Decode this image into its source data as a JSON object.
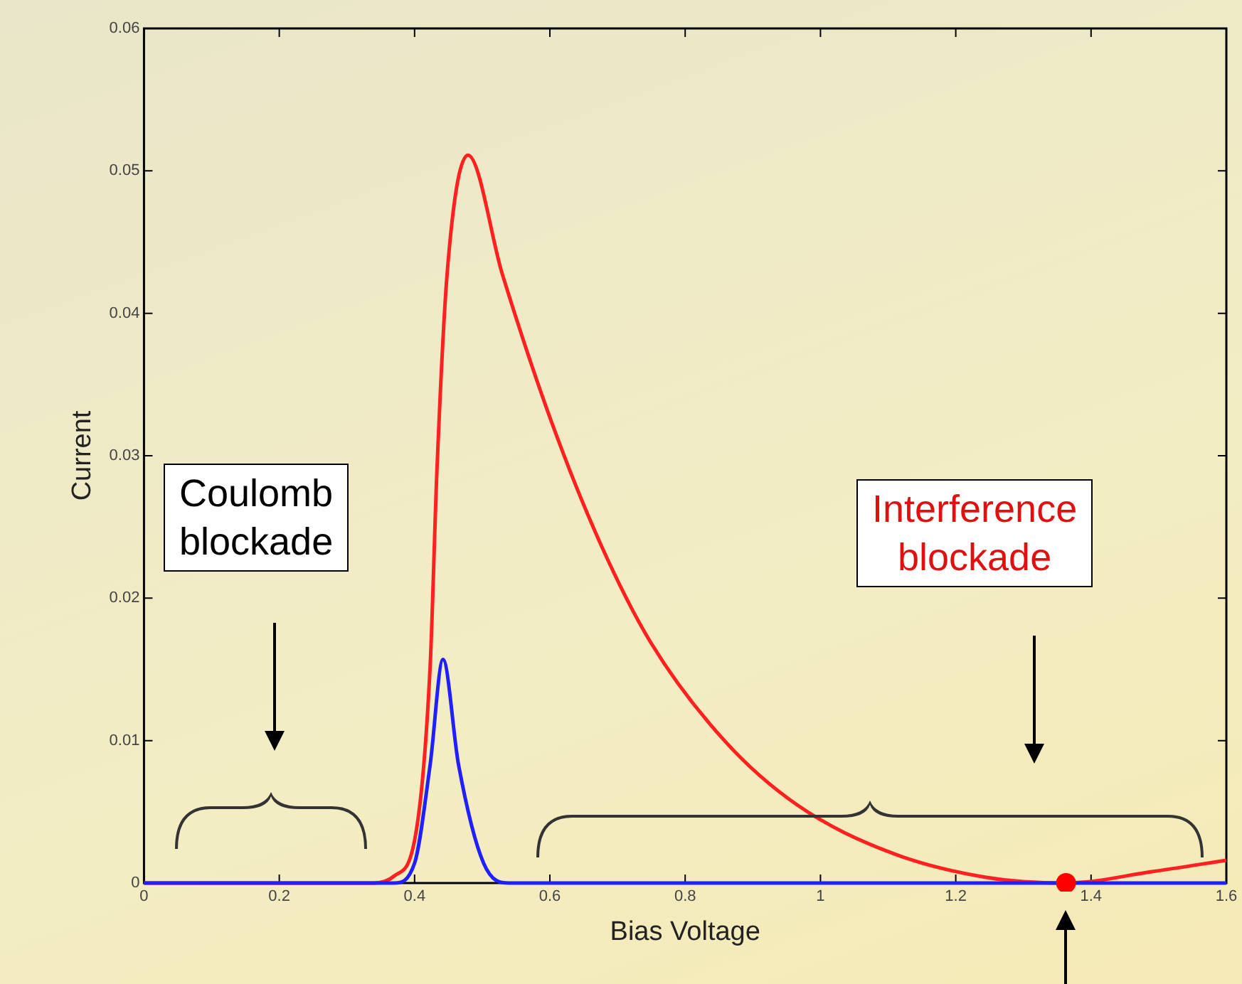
{
  "chart_data": {
    "type": "line",
    "xlabel": "Bias Voltage",
    "ylabel": "Current",
    "xlim": [
      0,
      1.6
    ],
    "xticks": [
      0,
      0.2,
      0.4,
      0.6,
      0.8,
      1,
      1.2,
      1.4,
      1.6
    ],
    "ylim": [
      0,
      0.06
    ],
    "yticks": [
      0,
      0.01,
      0.02,
      0.03,
      0.04,
      0.05,
      0.06
    ],
    "grid": false,
    "legend": false,
    "annotations": [
      "Coulomb blockade",
      "Interference blockade"
    ],
    "series": [
      {
        "color": "#ff2020",
        "x": [
          0,
          0.34,
          0.37,
          0.4,
          0.423,
          0.433,
          0.448,
          0.479,
          0.53,
          0.603,
          0.675,
          0.749,
          0.858,
          0.965,
          1.106,
          1.245,
          1.363,
          1.49,
          1.6
        ],
        "values": [
          0,
          0,
          0.0005,
          0.003,
          0.0152,
          0.0289,
          0.0427,
          0.0511,
          0.0427,
          0.0323,
          0.0238,
          0.0169,
          0.01,
          0.0055,
          0.0021,
          0.0004,
          0,
          0.0008,
          0.0016
        ]
      },
      {
        "color": "#2020ff",
        "x": [
          0,
          0.37,
          0.4,
          0.423,
          0.442,
          0.465,
          0.502,
          0.54,
          1.6
        ],
        "values": [
          0,
          0,
          0.0014,
          0.0083,
          0.0157,
          0.0083,
          0.0014,
          0,
          0
        ]
      },
      {
        "type": "scatter",
        "marker": "circle",
        "color": "#ff0000",
        "x": [
          1.363
        ],
        "values": [
          0
        ]
      }
    ]
  }
}
